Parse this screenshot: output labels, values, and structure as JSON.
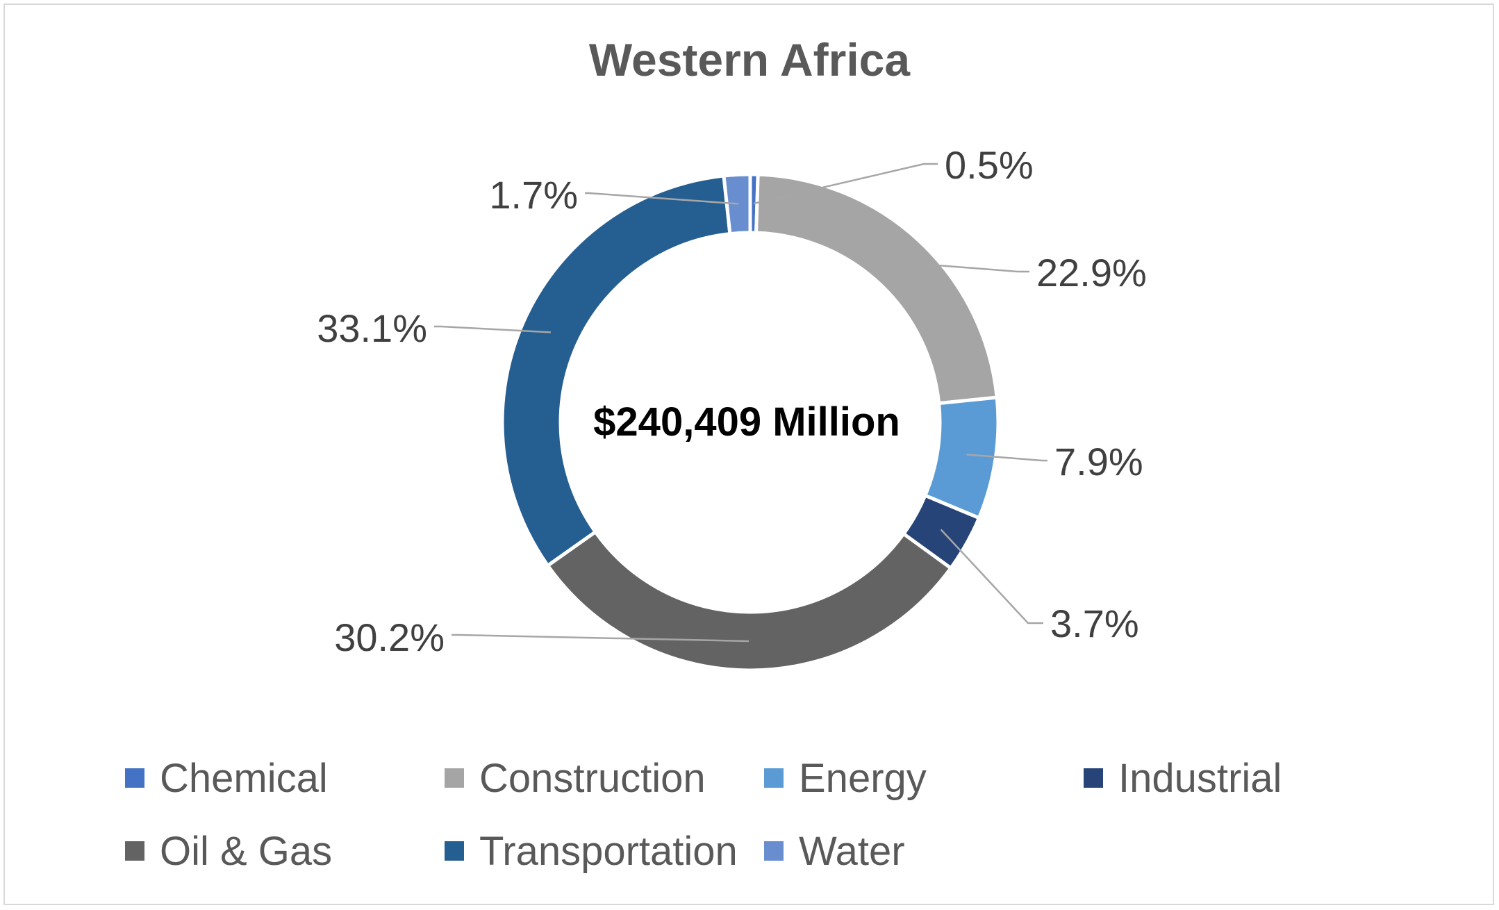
{
  "chart_data": {
    "type": "pie",
    "title": "Western Africa",
    "center_label": "$240,409 Million",
    "legend_position": "bottom",
    "series": [
      {
        "name": "Chemical",
        "value": 0.5,
        "label": "0.5%",
        "color": "#4472c4"
      },
      {
        "name": "Construction",
        "value": 22.9,
        "label": "22.9%",
        "color": "#a5a5a5"
      },
      {
        "name": "Energy",
        "value": 7.9,
        "label": "7.9%",
        "color": "#5b9bd5"
      },
      {
        "name": "Industrial",
        "value": 3.7,
        "label": "3.7%",
        "color": "#264478"
      },
      {
        "name": "Oil & Gas",
        "value": 30.2,
        "label": "30.2%",
        "color": "#636363"
      },
      {
        "name": "Transportation",
        "value": 33.1,
        "label": "33.1%",
        "color": "#255e91"
      },
      {
        "name": "Water",
        "value": 1.7,
        "label": "1.7%",
        "color": "#698ed0"
      }
    ]
  }
}
